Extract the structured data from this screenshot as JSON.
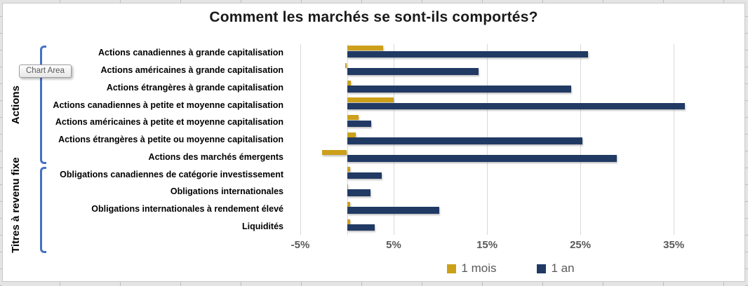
{
  "tooltip": {
    "label": "Chart Area"
  },
  "colors": {
    "gold": "#CDA01A",
    "navy": "#213A64",
    "bracket_blue": "#4472C4",
    "axis_text": "#595959",
    "gridline": "#D9D9D9",
    "title_text": "#1A1A1A"
  },
  "chart_data": {
    "type": "bar",
    "orientation": "horizontal",
    "title": "Comment les marchés se sont-ils comportés?",
    "categories": [
      "Actions canadiennes à grande capitalisation",
      "Actions américaines à grande capitalisation",
      "Actions étrangères à grande capitalisation",
      "Actions canadiennes à petite et moyenne capitalisation",
      "Actions américaines à petite et moyenne capitalisation",
      "Actions étrangères à petite ou moyenne capitalisation",
      "Actions des marchés émergents",
      "Obligations canadiennes de catégorie investissement",
      "Obligations internationales",
      "Obligations internationales à rendement élevé",
      "Liquidités"
    ],
    "series": [
      {
        "name": "1 mois",
        "color": "#CDA01A",
        "values": [
          3.9,
          -0.2,
          0.4,
          5.0,
          1.2,
          0.9,
          -2.7,
          0.3,
          0.1,
          0.35,
          0.3
        ]
      },
      {
        "name": "1 an",
        "color": "#213A64",
        "values": [
          25.8,
          14.1,
          24.0,
          36.2,
          2.6,
          25.2,
          28.9,
          3.7,
          2.5,
          9.9,
          3.0
        ]
      }
    ],
    "x_tick_labels": [
      "-5%",
      "5%",
      "15%",
      "25%",
      "35%"
    ],
    "x_tick_values": [
      -5,
      5,
      15,
      25,
      35
    ],
    "xlim": [
      -6.5,
      41.6
    ],
    "grid": true,
    "legend_position": "bottom",
    "group_labels": [
      {
        "label": "Actions",
        "from": 0,
        "to": 6
      },
      {
        "label": "Titres à revenu fixe",
        "from": 7,
        "to": 10
      }
    ]
  }
}
